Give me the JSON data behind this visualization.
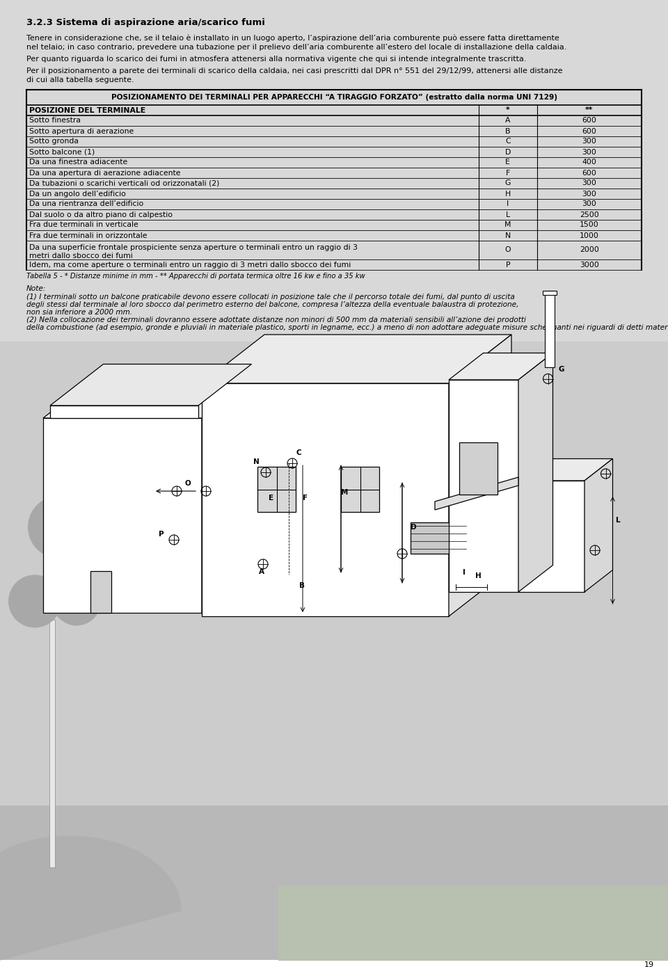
{
  "title": "3.2.3 Sistema di aspirazione aria/scarico fumi",
  "p1_line1": "Tenere in considerazione che, se il telaio è installato in un luogo aperto, l’aspirazione dell’aria comburente può essere fatta direttamente",
  "p1_line2": "nel telaio; in caso contrario, prevedere una tubazione per il prelievo dell’aria comburente all’estero del locale di installazione della caldaia.",
  "p2": "Per quanto riguarda lo scarico dei fumi in atmosfera attenersi alla normativa vigente che qui si intende integralmente trascritta.",
  "p3_line1": "Per il posizionamento a parete dei terminali di scarico della caldaia, nei casi prescritti dal DPR n° 551 del 29/12/99, attenersi alle distanze",
  "p3_line2": "di cui alla tabella seguente.",
  "table_header": "POSIZIONAMENTO DEI TERMINALI PER APPARECCHI “A TIRAGGIO FORZATO” (estratto dalla norma UNI 7129)",
  "col1_header": "POSIZIONE DEL TERMINALE",
  "col2_header": "*",
  "col3_header": "**",
  "rows": [
    [
      "Sotto finestra",
      "A",
      "600"
    ],
    [
      "Sotto apertura di aerazione",
      "B",
      "600"
    ],
    [
      "Sotto gronda",
      "C",
      "300"
    ],
    [
      "Sotto balcone (1)",
      "D",
      "300"
    ],
    [
      "Da una finestra adiacente",
      "E",
      "400"
    ],
    [
      "Da una apertura di aerazione adiacente",
      "F",
      "600"
    ],
    [
      "Da tubazioni o scarichi verticali od orizzonatali (2)",
      "G",
      "300"
    ],
    [
      "Da un angolo dell’edificio",
      "H",
      "300"
    ],
    [
      "Da una rientranza dell’edificio",
      "I",
      "300"
    ],
    [
      "Dal suolo o da altro piano di calpestio",
      "L",
      "2500"
    ],
    [
      "Fra due terminali in verticale",
      "M",
      "1500"
    ],
    [
      "Fra due terminali in orizzontale",
      "N",
      "1000"
    ],
    [
      "Da una superficie frontale prospiciente senza aperture o terminali entro un raggio di 3\nmetri dallo sbocco dei fumi",
      "O",
      "2000"
    ],
    [
      "Idem, ma come aperture o terminali entro un raggio di 3 metri dallo sbocco dei fumi",
      "P",
      "3000"
    ]
  ],
  "table_note": "Tabella 5 - * Distanze minime in mm - ** Apparecchi di portata termica oltre 16 kw e fino a 35 kw",
  "note_header": "Note:",
  "note1_lines": [
    "(1) I terminali sotto un balcone praticabile devono essere collocati in posizione tale che il percorso totale dei fumi, dal punto di uscita",
    "degli stessi dal terminale al loro sbocco dal perimetro esterno del balcone, compresa l’altezza della eventuale balaustra di protezione,",
    "non sia inferiore a 2000 mm."
  ],
  "note2_lines": [
    "(2) Nella collocazione dei terminali dovranno essere adottate distanze non minori di 500 mm da materiali sensibili all’azione dei prodotti",
    "della combustione (ad esempio, gronde e pluviali in materiale plastico, sporti in legname, ecc.) a meno di non adottare adeguate misure schermanti nei riguardi di detti materiali."
  ],
  "page_number": "19",
  "bg_color": "#ffffff",
  "diagram_bg": "#cccccc",
  "lmargin": 38,
  "rmargin": 922,
  "body_fs": 8.0,
  "title_fs": 9.5,
  "table_fs": 7.8,
  "note_fs": 7.6
}
